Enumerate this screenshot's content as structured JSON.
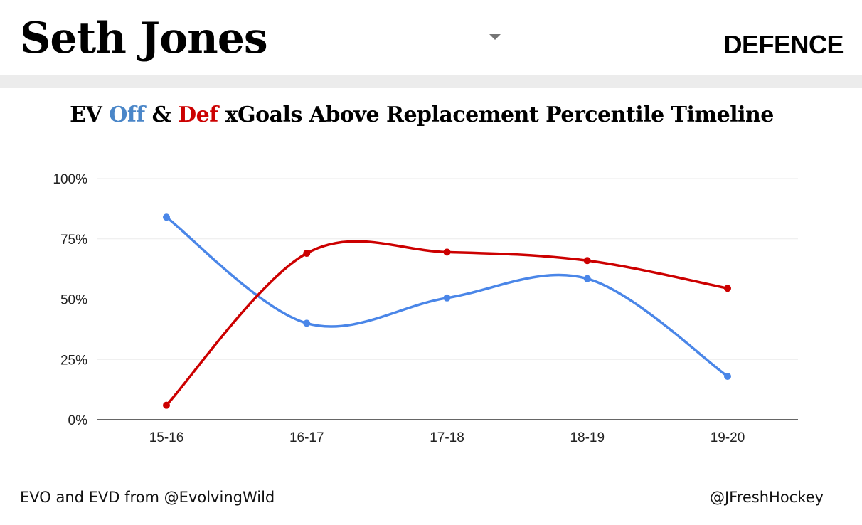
{
  "header": {
    "player_name": "Seth Jones",
    "position": "DEFENCE",
    "dropdown_icon": "caret-down-icon"
  },
  "title": {
    "prefix": "EV ",
    "off": "Off",
    "amp": " & ",
    "def": "Def",
    "suffix": " xGoals Above Replacement Percentile Timeline"
  },
  "footer": {
    "source": "EVO and EVD from @EvolvingWild",
    "credit": "@JFreshHockey"
  },
  "colors": {
    "off": "#4a86e8",
    "def": "#cc0000",
    "title_off": "#4a86c8",
    "title_def": "#cc0000"
  },
  "chart_data": {
    "type": "line",
    "categories": [
      "15-16",
      "16-17",
      "17-18",
      "18-19",
      "19-20"
    ],
    "series": [
      {
        "key": "off",
        "values": [
          84,
          40,
          50.5,
          58.5,
          18
        ]
      },
      {
        "key": "def",
        "values": [
          6,
          69,
          69.5,
          66,
          54.5
        ]
      }
    ],
    "ylim": [
      0,
      100
    ],
    "yticks": [
      0,
      25,
      50,
      75,
      100
    ],
    "ytick_labels": [
      "0%",
      "25%",
      "50%",
      "75%",
      "100%"
    ],
    "curve": "smooth",
    "grid": true,
    "legend": "none"
  }
}
